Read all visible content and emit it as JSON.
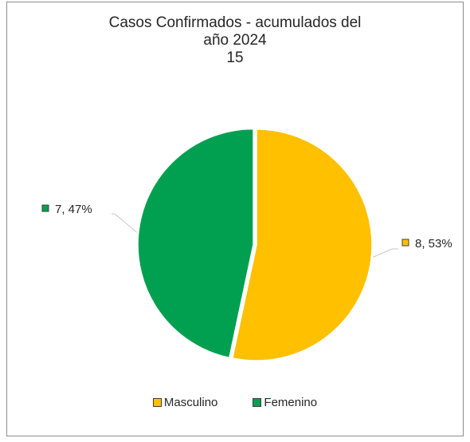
{
  "chart_data": {
    "type": "pie",
    "title_lines": [
      "Casos Confirmados - acumulados del",
      "año 2024",
      "15"
    ],
    "categories": [
      "Masculino",
      "Femenino"
    ],
    "values": [
      8,
      7
    ],
    "percent_labels": [
      "53%",
      "47%"
    ],
    "data_labels": [
      "8, 53%",
      "7, 47%"
    ],
    "colors": [
      "#ffc000",
      "#00a050"
    ],
    "legend_position": "bottom",
    "start_angle_deg": 0,
    "exploded_slices": [
      "Femenino"
    ]
  }
}
